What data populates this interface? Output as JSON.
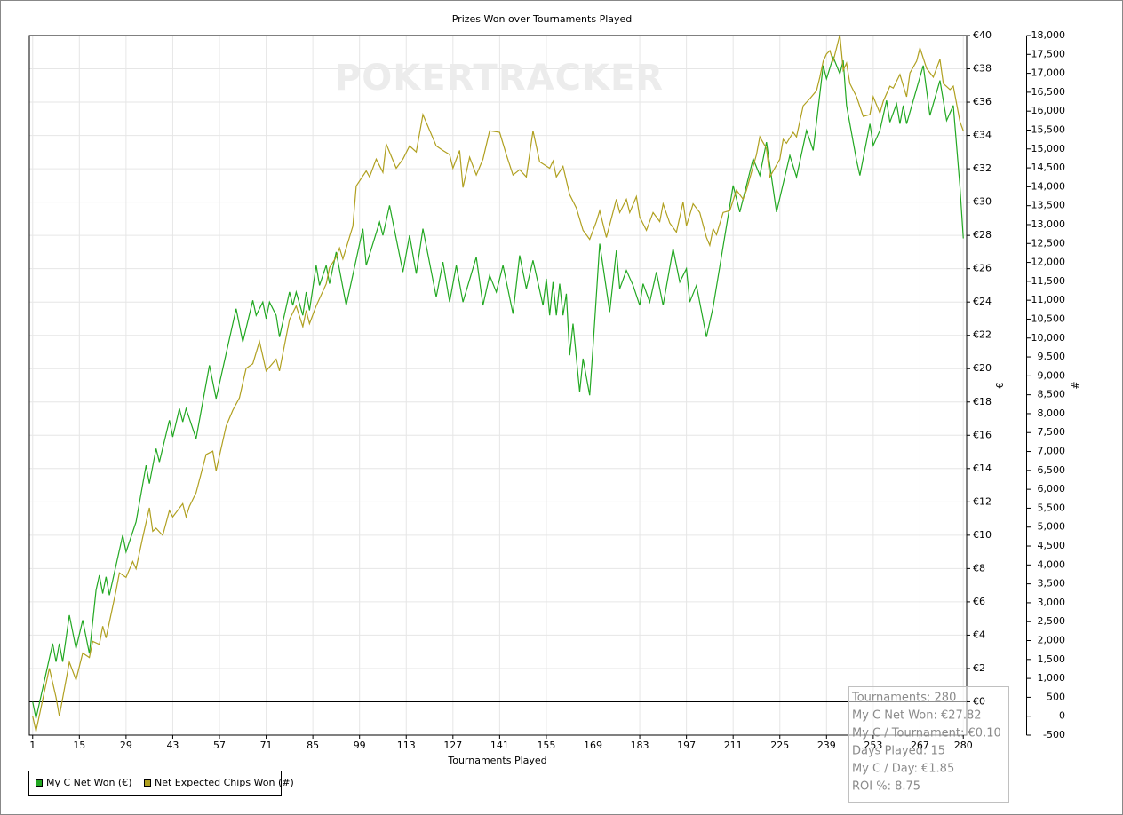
{
  "chart_data": {
    "type": "line",
    "title": "Prizes Won over Tournaments Played",
    "xlabel": "Tournaments Played",
    "ylabel": "€",
    "y2label": "#",
    "watermark": "POKERTRACKER",
    "grid": true,
    "xlim": [
      0,
      281
    ],
    "xticks": [
      1,
      15,
      29,
      43,
      57,
      71,
      85,
      99,
      113,
      127,
      141,
      155,
      169,
      183,
      197,
      211,
      225,
      239,
      253,
      267,
      280
    ],
    "ylim": [
      -2,
      40
    ],
    "yticks": [
      {
        "value": 0,
        "label": "€0"
      },
      {
        "value": 2,
        "label": "€2"
      },
      {
        "value": 4,
        "label": "€4"
      },
      {
        "value": 6,
        "label": "€6"
      },
      {
        "value": 8,
        "label": "€8"
      },
      {
        "value": 10,
        "label": "€10"
      },
      {
        "value": 12,
        "label": "€12"
      },
      {
        "value": 14,
        "label": "€14"
      },
      {
        "value": 16,
        "label": "€16"
      },
      {
        "value": 18,
        "label": "€18"
      },
      {
        "value": 20,
        "label": "€20"
      },
      {
        "value": 22,
        "label": "€22"
      },
      {
        "value": 24,
        "label": "€24"
      },
      {
        "value": 26,
        "label": "€26"
      },
      {
        "value": 28,
        "label": "€28"
      },
      {
        "value": 30,
        "label": "€30"
      },
      {
        "value": 32,
        "label": "€32"
      },
      {
        "value": 34,
        "label": "€34"
      },
      {
        "value": 36,
        "label": "€36"
      },
      {
        "value": 38,
        "label": "€38"
      },
      {
        "value": 40,
        "label": "€40"
      }
    ],
    "y2lim": [
      -500,
      18000
    ],
    "y2ticks": [
      -500,
      0,
      500,
      {
        "value": 1000,
        "label": "1,000"
      },
      {
        "value": 1500,
        "label": "1,500"
      },
      {
        "value": 2000,
        "label": "2,000"
      },
      {
        "value": 2500,
        "label": "2,500"
      },
      {
        "value": 3000,
        "label": "3,000"
      },
      {
        "value": 3500,
        "label": "3,500"
      },
      {
        "value": 4000,
        "label": "4,000"
      },
      {
        "value": 4500,
        "label": "4,500"
      },
      {
        "value": 5000,
        "label": "5,000"
      },
      {
        "value": 5500,
        "label": "5,500"
      },
      {
        "value": 6000,
        "label": "6,000"
      },
      {
        "value": 6500,
        "label": "6,500"
      },
      {
        "value": 7000,
        "label": "7,000"
      },
      {
        "value": 7500,
        "label": "7,500"
      },
      {
        "value": 8000,
        "label": "8,000"
      },
      {
        "value": 8500,
        "label": "8,500"
      },
      {
        "value": 9000,
        "label": "9,000"
      },
      {
        "value": 9500,
        "label": "9,500"
      },
      {
        "value": 10000,
        "label": "10,000"
      },
      {
        "value": 10500,
        "label": "10,500"
      },
      {
        "value": 11000,
        "label": "11,000"
      },
      {
        "value": 11500,
        "label": "11,500"
      },
      {
        "value": 12000,
        "label": "12,000"
      },
      {
        "value": 12500,
        "label": "12,500"
      },
      {
        "value": 13000,
        "label": "13,000"
      },
      {
        "value": 13500,
        "label": "13,500"
      },
      {
        "value": 14000,
        "label": "14,000"
      },
      {
        "value": 14500,
        "label": "14,500"
      },
      {
        "value": 15000,
        "label": "15,000"
      },
      {
        "value": 15500,
        "label": "15,500"
      },
      {
        "value": 16000,
        "label": "16,000"
      },
      {
        "value": 16500,
        "label": "16,500"
      },
      {
        "value": 17000,
        "label": "17,000"
      },
      {
        "value": 17500,
        "label": "17,500"
      },
      {
        "value": 18000,
        "label": "18,000"
      }
    ],
    "series": [
      {
        "name": "My C Net Won (€)",
        "color": "#22a822",
        "axis": "y",
        "x": [
          1,
          2,
          7,
          8,
          9,
          10,
          12,
          14,
          16,
          18,
          20,
          21,
          22,
          23,
          24,
          28,
          29,
          32,
          35,
          36,
          38,
          39,
          42,
          43,
          45,
          46,
          47,
          50,
          54,
          56,
          62,
          64,
          67,
          68,
          70,
          71,
          72,
          74,
          75,
          78,
          79,
          80,
          82,
          83,
          84,
          86,
          87,
          89,
          90,
          92,
          95,
          100,
          101,
          105,
          106,
          108,
          112,
          114,
          116,
          118,
          122,
          124,
          126,
          128,
          130,
          134,
          136,
          138,
          140,
          142,
          145,
          147,
          149,
          151,
          154,
          155,
          156,
          157,
          158,
          159,
          160,
          161,
          162,
          163,
          165,
          166,
          168,
          169,
          171,
          174,
          176,
          177,
          179,
          181,
          183,
          184,
          186,
          188,
          190,
          193,
          195,
          197,
          198,
          200,
          203,
          205,
          211,
          213,
          217,
          219,
          221,
          224,
          228,
          230,
          233,
          235,
          238,
          239,
          241,
          243,
          244,
          245,
          248,
          249,
          252,
          253,
          255,
          257,
          258,
          260,
          261,
          262,
          263,
          265,
          268,
          270,
          273,
          275,
          277,
          279,
          280
        ],
        "values": [
          0,
          -1,
          3.5,
          2.4,
          3.5,
          2.4,
          5.2,
          3.2,
          4.9,
          2.9,
          6.7,
          7.6,
          6.5,
          7.5,
          6.4,
          10,
          9,
          10.8,
          14.2,
          13.1,
          15.2,
          14.4,
          16.9,
          15.9,
          17.6,
          16.8,
          17.6,
          15.8,
          20.2,
          18.2,
          23.6,
          21.6,
          24.1,
          23.2,
          24,
          23,
          24,
          23.2,
          21.9,
          24.6,
          23.8,
          24.6,
          23.2,
          24.6,
          23.5,
          26.2,
          25,
          26.2,
          25.1,
          27,
          23.8,
          28.4,
          26.2,
          28.8,
          28,
          29.8,
          25.8,
          28,
          25.7,
          28.4,
          24.3,
          26.4,
          24,
          26.2,
          24,
          26.7,
          23.8,
          25.6,
          24.6,
          26.2,
          23.3,
          26.8,
          24.8,
          26.5,
          23.8,
          25.4,
          23.2,
          25.2,
          23.2,
          25.1,
          23.2,
          24.5,
          20.8,
          22.7,
          18.6,
          20.6,
          18.4,
          21.3,
          27.5,
          23.4,
          27.1,
          24.8,
          25.9,
          25,
          23.8,
          25.1,
          24,
          25.8,
          23.8,
          27.2,
          25.2,
          26,
          24,
          25,
          21.9,
          23.7,
          31,
          29.4,
          32.6,
          31.6,
          33.6,
          29.4,
          32.8,
          31.5,
          34.3,
          33.1,
          38.2,
          37.4,
          38.7,
          37.7,
          38.5,
          35.8,
          32.5,
          31.6,
          34.7,
          33.4,
          34.3,
          36.1,
          34.8,
          35.9,
          34.7,
          35.8,
          34.7,
          36.1,
          38.2,
          35.2,
          37.3,
          34.9,
          35.8,
          30.9,
          27.82
        ]
      },
      {
        "name": "Net Expected Chips Won (#)",
        "color": "#b0a020",
        "axis": "y2",
        "x": [
          1,
          2,
          6,
          8,
          9,
          12,
          14,
          16,
          18,
          19,
          21,
          22,
          23,
          26,
          27,
          29,
          31,
          32,
          34,
          36,
          37,
          38,
          40,
          42,
          43,
          46,
          47,
          48,
          50,
          53,
          55,
          56,
          59,
          61,
          63,
          65,
          67,
          69,
          71,
          74,
          75,
          78,
          80,
          82,
          83,
          84,
          86,
          89,
          90,
          92,
          93,
          94,
          97,
          98,
          101,
          102,
          104,
          106,
          107,
          110,
          112,
          114,
          116,
          118,
          122,
          124,
          126,
          127,
          129,
          130,
          132,
          134,
          136,
          138,
          141,
          143,
          145,
          147,
          149,
          151,
          153,
          156,
          157,
          158,
          160,
          162,
          164,
          166,
          168,
          170,
          171,
          173,
          176,
          177,
          179,
          180,
          182,
          183,
          185,
          187,
          189,
          190,
          192,
          194,
          196,
          197,
          199,
          201,
          203,
          204,
          205,
          206,
          208,
          210,
          212,
          214,
          215,
          217,
          218,
          219,
          221,
          222,
          225,
          226,
          227,
          229,
          230,
          232,
          234,
          236,
          237,
          238,
          239,
          240,
          241,
          243,
          244,
          245,
          246,
          248,
          250,
          252,
          253,
          255,
          256,
          258,
          259,
          261,
          263,
          264,
          266,
          267,
          269,
          271,
          273,
          274,
          276,
          277,
          279,
          280
        ],
        "values": [
          0,
          -400,
          1270,
          500,
          0,
          1430,
          960,
          1670,
          1550,
          1980,
          1900,
          2380,
          2070,
          3320,
          3790,
          3670,
          4090,
          3900,
          4730,
          5510,
          4890,
          4970,
          4780,
          5440,
          5270,
          5620,
          5270,
          5550,
          5910,
          6920,
          7010,
          6490,
          7670,
          8090,
          8420,
          9200,
          9320,
          9910,
          9130,
          9440,
          9130,
          10490,
          10850,
          10300,
          10730,
          10380,
          10850,
          11430,
          11860,
          12140,
          12380,
          12090,
          12960,
          14020,
          14420,
          14260,
          14730,
          14380,
          15130,
          14490,
          14730,
          15080,
          14920,
          15910,
          15080,
          14960,
          14850,
          14490,
          14960,
          13980,
          14780,
          14310,
          14730,
          15480,
          15440,
          14850,
          14310,
          14450,
          14260,
          15480,
          14660,
          14490,
          14680,
          14260,
          14540,
          13790,
          13440,
          12850,
          12610,
          13080,
          13370,
          12660,
          13670,
          13320,
          13670,
          13320,
          13740,
          13200,
          12850,
          13320,
          13080,
          13550,
          13040,
          12800,
          13600,
          12970,
          13550,
          13320,
          12660,
          12450,
          12890,
          12730,
          13320,
          13370,
          13910,
          13670,
          13910,
          14540,
          14850,
          15320,
          15010,
          14260,
          14730,
          15250,
          15150,
          15440,
          15320,
          16140,
          16330,
          16540,
          16900,
          17320,
          17510,
          17600,
          17320,
          18020,
          17080,
          17270,
          16730,
          16380,
          15860,
          15910,
          16380,
          15950,
          16260,
          16660,
          16610,
          16970,
          16380,
          17010,
          17320,
          17670,
          17130,
          16900,
          17370,
          16730,
          16570,
          16660,
          15720,
          15480
        ]
      }
    ],
    "annotations": [
      "Tournaments: 280",
      "My C Net Won: €27.82",
      "My C / Tournament: €0.10",
      "Days Played: 15",
      "My C / Day: €1.85",
      "ROI %: 8.75"
    ]
  }
}
